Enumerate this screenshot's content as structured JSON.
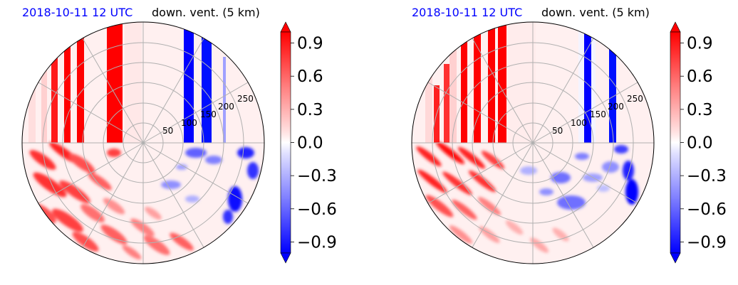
{
  "colors": {
    "date_title": "#0000ff",
    "positive": "#ff0000",
    "negative": "#0000ff",
    "neutral": "#ffffff",
    "grid": "#b0b0b0"
  },
  "chart_data": [
    {
      "type": "heatmap",
      "projection": "polar (north-pole stereographic disk)",
      "title_left": "2018-10-11 12 UTC",
      "title_right": "down. vent. (5 km)",
      "radial_ticks": [
        50,
        100,
        150,
        200,
        250
      ],
      "grid": true,
      "colormap": "bwr",
      "colorbar": {
        "orientation": "vertical",
        "location": "right",
        "range": [
          -1.0,
          1.0
        ],
        "extend": "both",
        "ticks": [
          0.9,
          0.6,
          0.3,
          0.0,
          -0.3,
          -0.6,
          -0.9
        ],
        "tick_labels": [
          "0.9",
          "0.6",
          "0.3",
          "0.0",
          "−0.3",
          "−0.6",
          "−0.9"
        ]
      },
      "field_description_values": {
        "upper_half_stripes": [
          {
            "longitude_offset": -0.58,
            "value": 0.9
          },
          {
            "longitude_offset": -0.53,
            "value": 0.9
          },
          {
            "longitude_offset": -0.49,
            "value": 0.9
          },
          {
            "longitude_offset": -0.28,
            "value": 0.9
          },
          {
            "longitude_offset": 0.4,
            "value": -0.9
          },
          {
            "longitude_offset": 0.52,
            "value": -0.9
          },
          {
            "longitude_offset": 0.67,
            "value": -0.3
          }
        ]
      }
    },
    {
      "type": "heatmap",
      "projection": "polar (north-pole stereographic disk)",
      "title_left": "2018-10-11 12 UTC",
      "title_right": "down. vent. (5 km)",
      "radial_ticks": [
        50,
        100,
        150,
        200,
        250
      ],
      "grid": true,
      "colormap": "bwr",
      "colorbar": {
        "orientation": "vertical",
        "location": "right",
        "range": [
          -1.0,
          1.0
        ],
        "extend": "both",
        "ticks": [
          0.9,
          0.6,
          0.3,
          0.0,
          -0.3,
          -0.6,
          -0.9
        ],
        "tick_labels": [
          "0.9",
          "0.6",
          "0.3",
          "0.0",
          "−0.3",
          "−0.6",
          "−0.9"
        ]
      },
      "field_description_values": {
        "upper_half_stripes": [
          {
            "longitude_offset": -0.58,
            "value": 0.9
          },
          {
            "longitude_offset": -0.47,
            "value": 0.9
          },
          {
            "longitude_offset": -0.36,
            "value": 0.9
          },
          {
            "longitude_offset": -0.24,
            "value": 0.9
          },
          {
            "longitude_offset": 0.44,
            "value": -0.9
          },
          {
            "longitude_offset": 0.66,
            "value": -0.9
          }
        ]
      }
    }
  ]
}
